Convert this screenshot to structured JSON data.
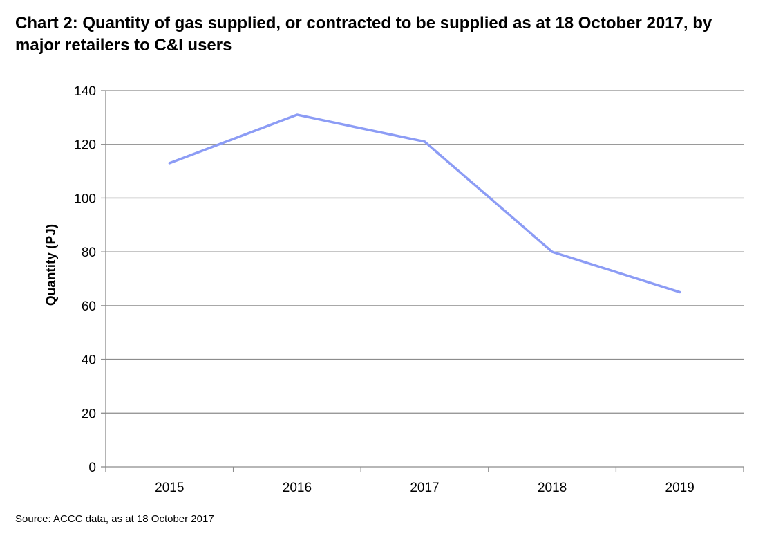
{
  "title": "Chart 2: Quantity of gas supplied, or contracted to be supplied as at 18 October 2017, by major retailers to C&I users",
  "source": "Source: ACCC data, as at 18 October 2017",
  "chart_data": {
    "type": "line",
    "title": "Chart 2: Quantity of gas supplied, or contracted to be supplied as at 18 October 2017, by major retailers to C&I users",
    "xlabel": "",
    "ylabel": "Quantity (PJ)",
    "categories": [
      "2015",
      "2016",
      "2017",
      "2018",
      "2019"
    ],
    "series": [
      {
        "values": [
          113,
          131,
          121,
          80,
          65
        ],
        "color": "#8c9cf5"
      }
    ],
    "ylim": [
      0,
      140
    ],
    "yticks": [
      "0",
      "20",
      "40",
      "60",
      "80",
      "100",
      "120",
      "140"
    ],
    "grid": true,
    "legend": "none",
    "colors": {
      "line": "#8c9cf5",
      "grid": "#8c8c8c",
      "axis": "#8c8c8c"
    }
  }
}
